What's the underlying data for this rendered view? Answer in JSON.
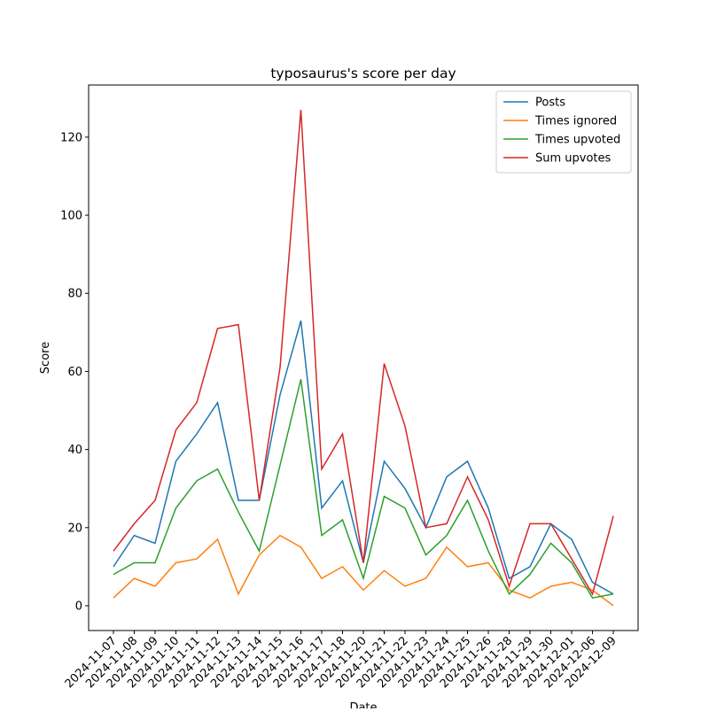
{
  "chart_data": {
    "type": "line",
    "title": "typosaurus's score per day",
    "x_label": "Date",
    "y_label": "Score",
    "categories": [
      "2024-11-07",
      "2024-11-08",
      "2024-11-09",
      "2024-11-10",
      "2024-11-11",
      "2024-11-12",
      "2024-11-13",
      "2024-11-14",
      "2024-11-15",
      "2024-11-16",
      "2024-11-17",
      "2024-11-18",
      "2024-11-20",
      "2024-11-21",
      "2024-11-22",
      "2024-11-23",
      "2024-11-24",
      "2024-11-25",
      "2024-11-26",
      "2024-11-28",
      "2024-11-29",
      "2024-11-30",
      "2024-12-01",
      "2024-12-06",
      "2024-12-09"
    ],
    "series": [
      {
        "name": "Posts",
        "color": "#1f77b4",
        "values": [
          10,
          18,
          16,
          37,
          44,
          52,
          27,
          27,
          54,
          73,
          25,
          32,
          11,
          37,
          30,
          20,
          33,
          37,
          25,
          7,
          10,
          21,
          17,
          6,
          3
        ]
      },
      {
        "name": "Times ignored",
        "color": "#ff7f0e",
        "values": [
          2,
          7,
          5,
          11,
          12,
          17,
          3,
          13,
          18,
          15,
          7,
          10,
          4,
          9,
          5,
          7,
          15,
          10,
          11,
          4,
          2,
          5,
          6,
          4,
          0
        ]
      },
      {
        "name": "Times upvoted",
        "color": "#2ca02c",
        "values": [
          8,
          11,
          11,
          25,
          32,
          35,
          24,
          14,
          36,
          58,
          18,
          22,
          7,
          28,
          25,
          13,
          18,
          27,
          14,
          3,
          8,
          16,
          11,
          2,
          3
        ]
      },
      {
        "name": "Sum upvotes",
        "color": "#d62728",
        "values": [
          14,
          21,
          27,
          45,
          52,
          71,
          72,
          27,
          61,
          127,
          35,
          44,
          11,
          62,
          46,
          20,
          21,
          33,
          22,
          5,
          21,
          21,
          12,
          3,
          23
        ]
      }
    ],
    "ylim": [
      -6.35,
      133.35
    ],
    "yticks": [
      0,
      20,
      40,
      60,
      80,
      100,
      120
    ],
    "legend": "upper right",
    "grid": false
  }
}
